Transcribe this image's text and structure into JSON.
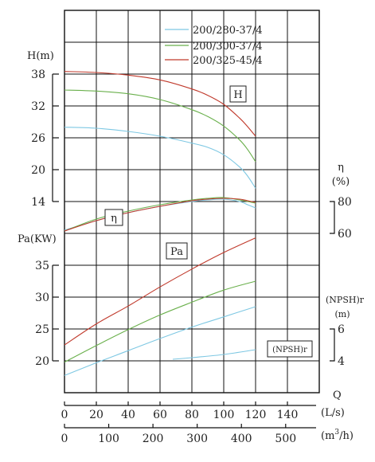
{
  "chart_data": {
    "type": "line",
    "legend": {
      "placement": "top-right",
      "entries": [
        {
          "name": "200/280-37/4",
          "color": "#7ec8e3"
        },
        {
          "name": "200/300-37/4",
          "color": "#6ab04c"
        },
        {
          "name": "200/325-45/4",
          "color": "#c0392b"
        }
      ]
    },
    "axes": {
      "q_ls": {
        "label": "Q",
        "unit": "(L/s)",
        "ticks": [
          "0",
          "20",
          "40",
          "60",
          "80",
          "100",
          "120",
          "140"
        ],
        "range": [
          0,
          150
        ]
      },
      "q_m3h": {
        "unit_prefix": "(m",
        "unit_sup": "3",
        "unit_suffix": "/h)",
        "ticks": [
          "0",
          "100",
          "200",
          "300",
          "400",
          "500"
        ],
        "tick_values": [
          0,
          100,
          200,
          300,
          400,
          500
        ]
      },
      "head": {
        "label": "H(m)",
        "ticks": [
          "38",
          "32",
          "26",
          "20",
          "14"
        ],
        "tick_values": [
          38,
          32,
          26,
          20,
          14
        ]
      },
      "power": {
        "label": "Pa(KW)",
        "ticks": [
          "35",
          "30",
          "25",
          "20"
        ],
        "tick_values": [
          35,
          30,
          25,
          20
        ]
      },
      "efficiency": {
        "label": "η",
        "unit": "(%)",
        "ticks": [
          "80",
          "60"
        ],
        "tick_values": [
          80,
          60
        ]
      },
      "npsh": {
        "label": "(NPSH)r",
        "unit": "(m)",
        "ticks": [
          "6",
          "4"
        ],
        "tick_values": [
          6,
          4
        ]
      }
    },
    "curve_labels": {
      "head": "H",
      "efficiency": "η",
      "power": "Pa",
      "npsh": "(NPSH)r"
    },
    "series": [
      {
        "name": "200/280-37/4",
        "color": "#7ec8e3",
        "head": {
          "x": [
            0,
            20,
            40,
            60,
            80,
            90,
            100,
            110,
            115,
            120
          ],
          "y": [
            28,
            27.8,
            27.2,
            26.3,
            25,
            24.2,
            22.8,
            20.5,
            18.8,
            16.5
          ]
        },
        "efficiency": {
          "x": [
            0,
            20,
            40,
            60,
            80,
            90,
            100,
            110,
            115,
            120
          ],
          "y": [
            62,
            68,
            73,
            77,
            80,
            81,
            81.5,
            80,
            78,
            76
          ]
        },
        "power": {
          "x": [
            0,
            20,
            40,
            60,
            80,
            100,
            120
          ],
          "y": [
            17.7,
            19.7,
            21.6,
            23.5,
            25.3,
            26.9,
            28.5
          ]
        },
        "npsh": {
          "x": [
            68,
            80,
            100,
            120
          ],
          "y": [
            4.1,
            4.2,
            4.4,
            4.7
          ]
        }
      },
      {
        "name": "200/300-37/4",
        "color": "#6ab04c",
        "head": {
          "x": [
            0,
            20,
            40,
            60,
            80,
            90,
            100,
            110,
            115,
            120
          ],
          "y": [
            35,
            34.8,
            34.3,
            33.2,
            31.3,
            30,
            28.2,
            25.6,
            23.8,
            21.5
          ]
        },
        "efficiency": {
          "x": [
            0,
            20,
            40,
            60,
            80,
            90,
            100,
            110,
            115,
            120
          ],
          "y": [
            61.5,
            69,
            74,
            78,
            81,
            82,
            82.5,
            81,
            80,
            79
          ]
        },
        "power": {
          "x": [
            0,
            20,
            40,
            60,
            80,
            100,
            120
          ],
          "y": [
            19.8,
            22.4,
            24.9,
            27.2,
            29.2,
            31.1,
            32.5
          ]
        }
      },
      {
        "name": "200/325-45/4",
        "color": "#c0392b",
        "head": {
          "x": [
            0,
            20,
            40,
            60,
            80,
            90,
            100,
            110,
            115,
            120
          ],
          "y": [
            38.5,
            38.3,
            37.8,
            36.9,
            35.2,
            34,
            32.3,
            29.7,
            28.1,
            26.3
          ]
        },
        "efficiency": {
          "x": [
            0,
            20,
            40,
            60,
            80,
            90,
            100,
            110,
            115,
            120
          ],
          "y": [
            61.5,
            68,
            73,
            77,
            80.5,
            81.5,
            82,
            81.5,
            80.5,
            79.5
          ]
        },
        "power": {
          "x": [
            0,
            20,
            40,
            60,
            80,
            100,
            120
          ],
          "y": [
            22.5,
            25.8,
            28.6,
            31.6,
            34.4,
            37,
            39.3
          ]
        }
      }
    ],
    "grid": true
  }
}
